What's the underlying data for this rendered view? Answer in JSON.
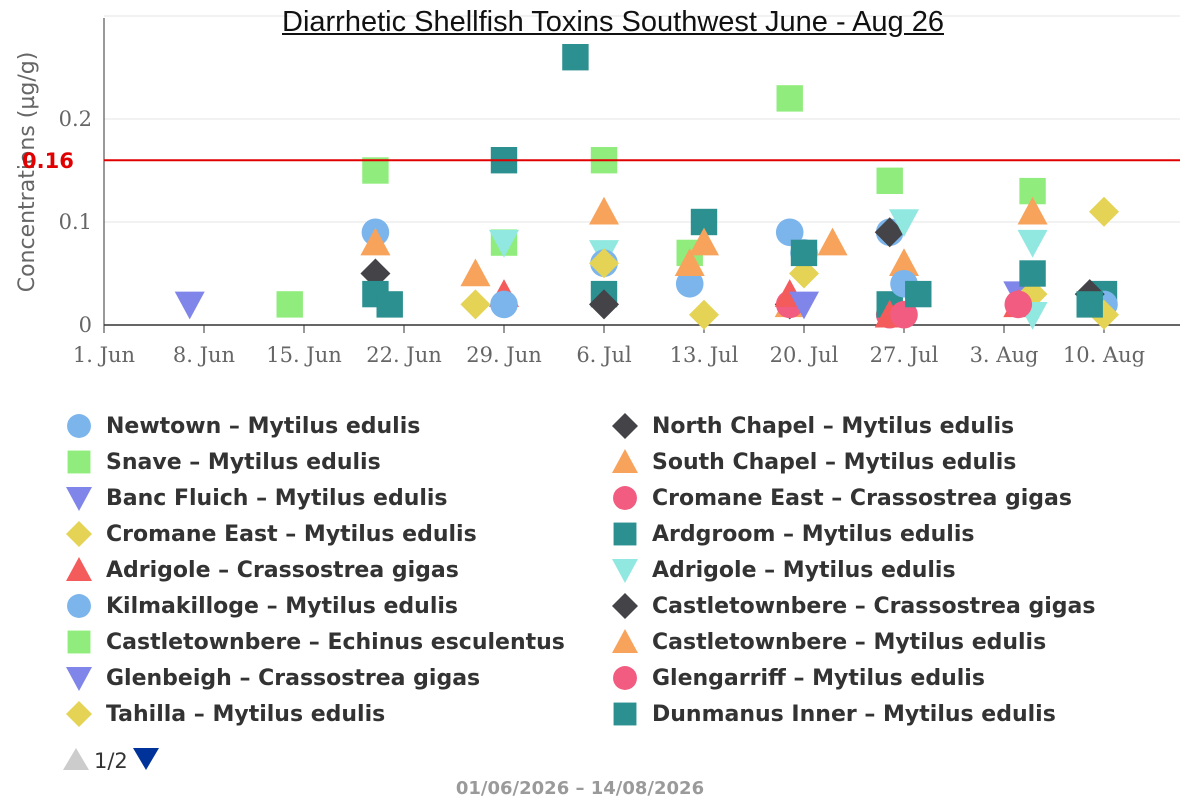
{
  "chart_data": {
    "type": "scatter",
    "title": "Diarrhetic Shellfish Toxins Southwest June - Aug 26",
    "ylabel": "Concentrations (µg/g)",
    "xlabel": "",
    "x_axis": {
      "type": "date",
      "range": [
        "2026-06-01",
        "2026-08-14"
      ],
      "tick_labels": [
        "1. Jun",
        "8. Jun",
        "15. Jun",
        "22. Jun",
        "29. Jun",
        "6. Jul",
        "13. Jul",
        "20. Jul",
        "27. Jul",
        "3. Aug",
        "10. Aug"
      ]
    },
    "y_axis": {
      "range": [
        0,
        0.3
      ],
      "tick_labels": [
        "0",
        "0.1",
        "0.2"
      ]
    },
    "grid": "horizontal",
    "threshold": {
      "value": 0.16,
      "label": "0.16",
      "color": "#e00000"
    },
    "legend_position": "bottom",
    "series": [
      {
        "name": "Newtown – Mytilus edulis",
        "symbol": "circle",
        "color": "#7cb5ec",
        "points": [
          [
            "2026-06-20",
            0.09
          ],
          [
            "2026-07-19",
            0.09
          ],
          [
            "2026-07-20",
            0.07
          ],
          [
            "2026-07-12",
            0.04
          ],
          [
            "2026-07-26",
            0.09
          ]
        ]
      },
      {
        "name": "North Chapel – Mytilus edulis",
        "symbol": "diamond",
        "color": "#434348",
        "points": [
          [
            "2026-06-20",
            0.05
          ],
          [
            "2026-07-19",
            0.02
          ],
          [
            "2026-07-26",
            0.09
          ]
        ]
      },
      {
        "name": "Snave – Mytilus edulis",
        "symbol": "square",
        "color": "#90ed7d",
        "points": [
          [
            "2026-06-14",
            0.02
          ],
          [
            "2026-06-20",
            0.15
          ],
          [
            "2026-06-29",
            0.08
          ],
          [
            "2026-07-06",
            0.16
          ],
          [
            "2026-07-19",
            0.22
          ],
          [
            "2026-07-26",
            0.14
          ],
          [
            "2026-08-05",
            0.13
          ],
          [
            "2026-07-12",
            0.07
          ]
        ]
      },
      {
        "name": "South Chapel – Mytilus edulis",
        "symbol": "triangle",
        "color": "#f7a35c",
        "points": [
          [
            "2026-06-20",
            0.08
          ],
          [
            "2026-06-27",
            0.05
          ],
          [
            "2026-07-06",
            0.11
          ],
          [
            "2026-07-12",
            0.06
          ],
          [
            "2026-07-22",
            0.08
          ],
          [
            "2026-07-27",
            0.06
          ],
          [
            "2026-08-05",
            0.11
          ],
          [
            "2026-07-19",
            0.02
          ]
        ]
      },
      {
        "name": "Banc Fluich – Mytilus edulis",
        "symbol": "triangle-down",
        "color": "#8085e9",
        "points": [
          [
            "2026-06-07",
            0.02
          ],
          [
            "2026-08-04",
            0.03
          ]
        ]
      },
      {
        "name": "Cromane East – Crassostrea gigas",
        "symbol": "circle",
        "color": "#f15c80",
        "points": [
          [
            "2026-07-19",
            0.02
          ],
          [
            "2026-07-26",
            0.01
          ]
        ]
      },
      {
        "name": "Cromane East – Mytilus edulis",
        "symbol": "diamond",
        "color": "#e4d354",
        "points": [
          [
            "2026-06-27",
            0.02
          ],
          [
            "2026-07-13",
            0.01
          ],
          [
            "2026-07-20",
            0.05
          ],
          [
            "2026-08-05",
            0.03
          ],
          [
            "2026-08-10",
            0.11
          ]
        ]
      },
      {
        "name": "Ardgroom – Mytilus edulis",
        "symbol": "square",
        "color": "#2b908f",
        "points": [
          [
            "2026-06-20",
            0.03
          ],
          [
            "2026-06-29",
            0.16
          ],
          [
            "2026-07-04",
            0.26
          ],
          [
            "2026-07-06",
            0.03
          ],
          [
            "2026-07-13",
            0.1
          ],
          [
            "2026-07-20",
            0.07
          ],
          [
            "2026-07-26",
            0.02
          ],
          [
            "2026-08-05",
            0.05
          ],
          [
            "2026-08-10",
            0.03
          ]
        ]
      },
      {
        "name": "Adrigole – Crassostrea gigas",
        "symbol": "triangle",
        "color": "#f45b5b",
        "points": [
          [
            "2026-06-29",
            0.03
          ],
          [
            "2026-07-19",
            0.03
          ],
          [
            "2026-07-26",
            0.01
          ],
          [
            "2026-08-04",
            0.02
          ]
        ]
      },
      {
        "name": "Adrigole – Mytilus edulis",
        "symbol": "triangle-down",
        "color": "#91e8e1",
        "points": [
          [
            "2026-06-29",
            0.08
          ],
          [
            "2026-07-06",
            0.07
          ],
          [
            "2026-07-27",
            0.1
          ],
          [
            "2026-08-05",
            0.08
          ],
          [
            "2026-08-05",
            0.01
          ]
        ]
      },
      {
        "name": "Kilmakilloge – Mytilus edulis",
        "symbol": "circle",
        "color": "#7cb5ec",
        "points": [
          [
            "2026-06-29",
            0.02
          ],
          [
            "2026-07-06",
            0.06
          ],
          [
            "2026-07-27",
            0.04
          ],
          [
            "2026-08-10",
            0.02
          ]
        ]
      },
      {
        "name": "Castletownbere – Crassostrea gigas",
        "symbol": "diamond",
        "color": "#434348",
        "points": [
          [
            "2026-07-06",
            0.02
          ],
          [
            "2026-08-09",
            0.03
          ]
        ]
      },
      {
        "name": "Castletownbere – Echinus esculentus",
        "symbol": "square",
        "color": "#90ed7d",
        "points": []
      },
      {
        "name": "Castletownbere – Mytilus edulis",
        "symbol": "triangle",
        "color": "#f7a35c",
        "points": [
          [
            "2026-07-13",
            0.08
          ]
        ]
      },
      {
        "name": "Glenbeigh – Crassostrea gigas",
        "symbol": "triangle-down",
        "color": "#8085e9",
        "points": [
          [
            "2026-07-20",
            0.02
          ]
        ]
      },
      {
        "name": "Glengarriff – Mytilus edulis",
        "symbol": "circle",
        "color": "#f15c80",
        "points": [
          [
            "2026-08-04",
            0.02
          ],
          [
            "2026-07-27",
            0.01
          ]
        ]
      },
      {
        "name": "Tahilla – Mytilus edulis",
        "symbol": "diamond",
        "color": "#e4d354",
        "points": [
          [
            "2026-08-10",
            0.01
          ],
          [
            "2026-07-06",
            0.06
          ]
        ]
      },
      {
        "name": "Dunmanus Inner – Mytilus edulis",
        "symbol": "square",
        "color": "#2b908f",
        "points": [
          [
            "2026-06-21",
            0.02
          ],
          [
            "2026-07-28",
            0.03
          ],
          [
            "2026-08-09",
            0.02
          ]
        ]
      }
    ]
  },
  "legend": {
    "items": [
      {
        "label": "Newtown – Mytilus edulis",
        "symbol": "circle",
        "color": "#7cb5ec"
      },
      {
        "label": "North Chapel – Mytilus edulis",
        "symbol": "diamond",
        "color": "#434348"
      },
      {
        "label": "Snave – Mytilus edulis",
        "symbol": "square",
        "color": "#90ed7d"
      },
      {
        "label": "South Chapel – Mytilus edulis",
        "symbol": "triangle",
        "color": "#f7a35c"
      },
      {
        "label": "Banc Fluich – Mytilus edulis",
        "symbol": "triangle-down",
        "color": "#8085e9"
      },
      {
        "label": "Cromane East – Crassostrea gigas",
        "symbol": "circle",
        "color": "#f15c80"
      },
      {
        "label": "Cromane East – Mytilus edulis",
        "symbol": "diamond",
        "color": "#e4d354"
      },
      {
        "label": "Ardgroom – Mytilus edulis",
        "symbol": "square",
        "color": "#2b908f"
      },
      {
        "label": "Adrigole – Crassostrea gigas",
        "symbol": "triangle",
        "color": "#f45b5b"
      },
      {
        "label": "Adrigole – Mytilus edulis",
        "symbol": "triangle-down",
        "color": "#91e8e1"
      },
      {
        "label": "Kilmakilloge – Mytilus edulis",
        "symbol": "circle",
        "color": "#7cb5ec"
      },
      {
        "label": "Castletownbere – Crassostrea gigas",
        "symbol": "diamond",
        "color": "#434348"
      },
      {
        "label": "Castletownbere – Echinus esculentus",
        "symbol": "square",
        "color": "#90ed7d"
      },
      {
        "label": "Castletownbere – Mytilus edulis",
        "symbol": "triangle",
        "color": "#f7a35c"
      },
      {
        "label": "Glenbeigh – Crassostrea gigas",
        "symbol": "triangle-down",
        "color": "#8085e9"
      },
      {
        "label": "Glengarriff – Mytilus edulis",
        "symbol": "circle",
        "color": "#f15c80"
      },
      {
        "label": "Tahilla – Mytilus edulis",
        "symbol": "diamond",
        "color": "#e4d354"
      },
      {
        "label": "Dunmanus Inner – Mytilus edulis",
        "symbol": "square",
        "color": "#2b908f"
      }
    ]
  },
  "pager": {
    "text": "1/2",
    "prev_color": "#cccccc",
    "next_color": "#003399"
  },
  "footer": {
    "date_range": "01/06/2026 – 14/08/2026"
  }
}
